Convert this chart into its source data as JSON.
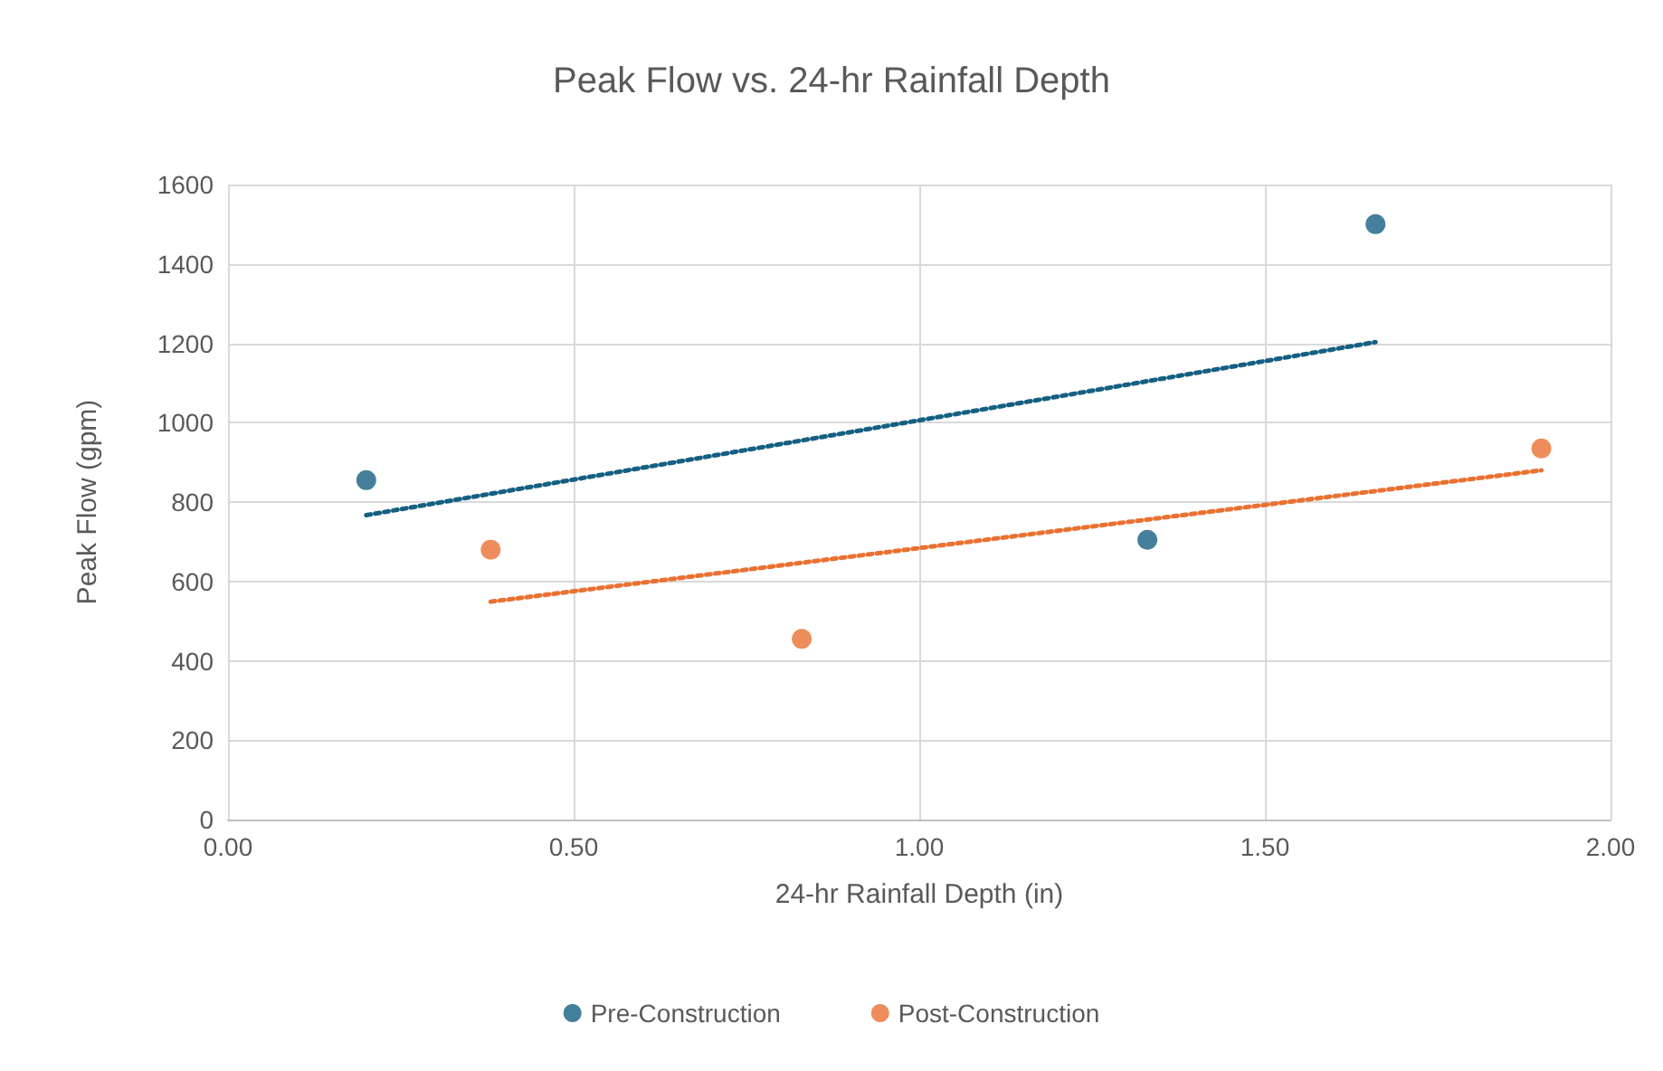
{
  "chart_data": {
    "type": "scatter",
    "title": "Peak Flow vs. 24-hr Rainfall Depth",
    "xlabel": "24-hr Rainfall Depth (in)",
    "ylabel": "Peak Flow (gpm)",
    "xlim": [
      0,
      2
    ],
    "xticks": [
      {
        "value": 0,
        "label": "0.00"
      },
      {
        "value": 0.5,
        "label": "0.50"
      },
      {
        "value": 1,
        "label": "1.00"
      },
      {
        "value": 1.5,
        "label": "1.50"
      },
      {
        "value": 2,
        "label": "2.00"
      }
    ],
    "ylim": [
      0,
      1600
    ],
    "yticks": [
      0,
      200,
      400,
      600,
      800,
      1000,
      1200,
      1400,
      1600
    ],
    "grid": true,
    "legend": "bottom",
    "marker": "circle",
    "series": [
      {
        "name": "Pre-Construction",
        "color": "#156082",
        "x": [
          0.2,
          1.33,
          1.66
        ],
        "values": [
          855,
          705,
          1500
        ]
      },
      {
        "name": "Post-Construction",
        "color": "#e97132",
        "x": [
          0.38,
          0.83,
          1.9
        ],
        "values": [
          680,
          455,
          935
        ]
      },
      {
        "type": "line",
        "color": "#156082",
        "x": [
          0.2,
          1.66
        ],
        "values": [
          767,
          1203
        ],
        "marker": "none",
        "line_style": "dotted"
      },
      {
        "type": "line",
        "color": "#e97132",
        "x": [
          0.38,
          1.9
        ],
        "values": [
          549,
          880
        ],
        "marker": "none",
        "line_style": "dotted"
      }
    ]
  }
}
